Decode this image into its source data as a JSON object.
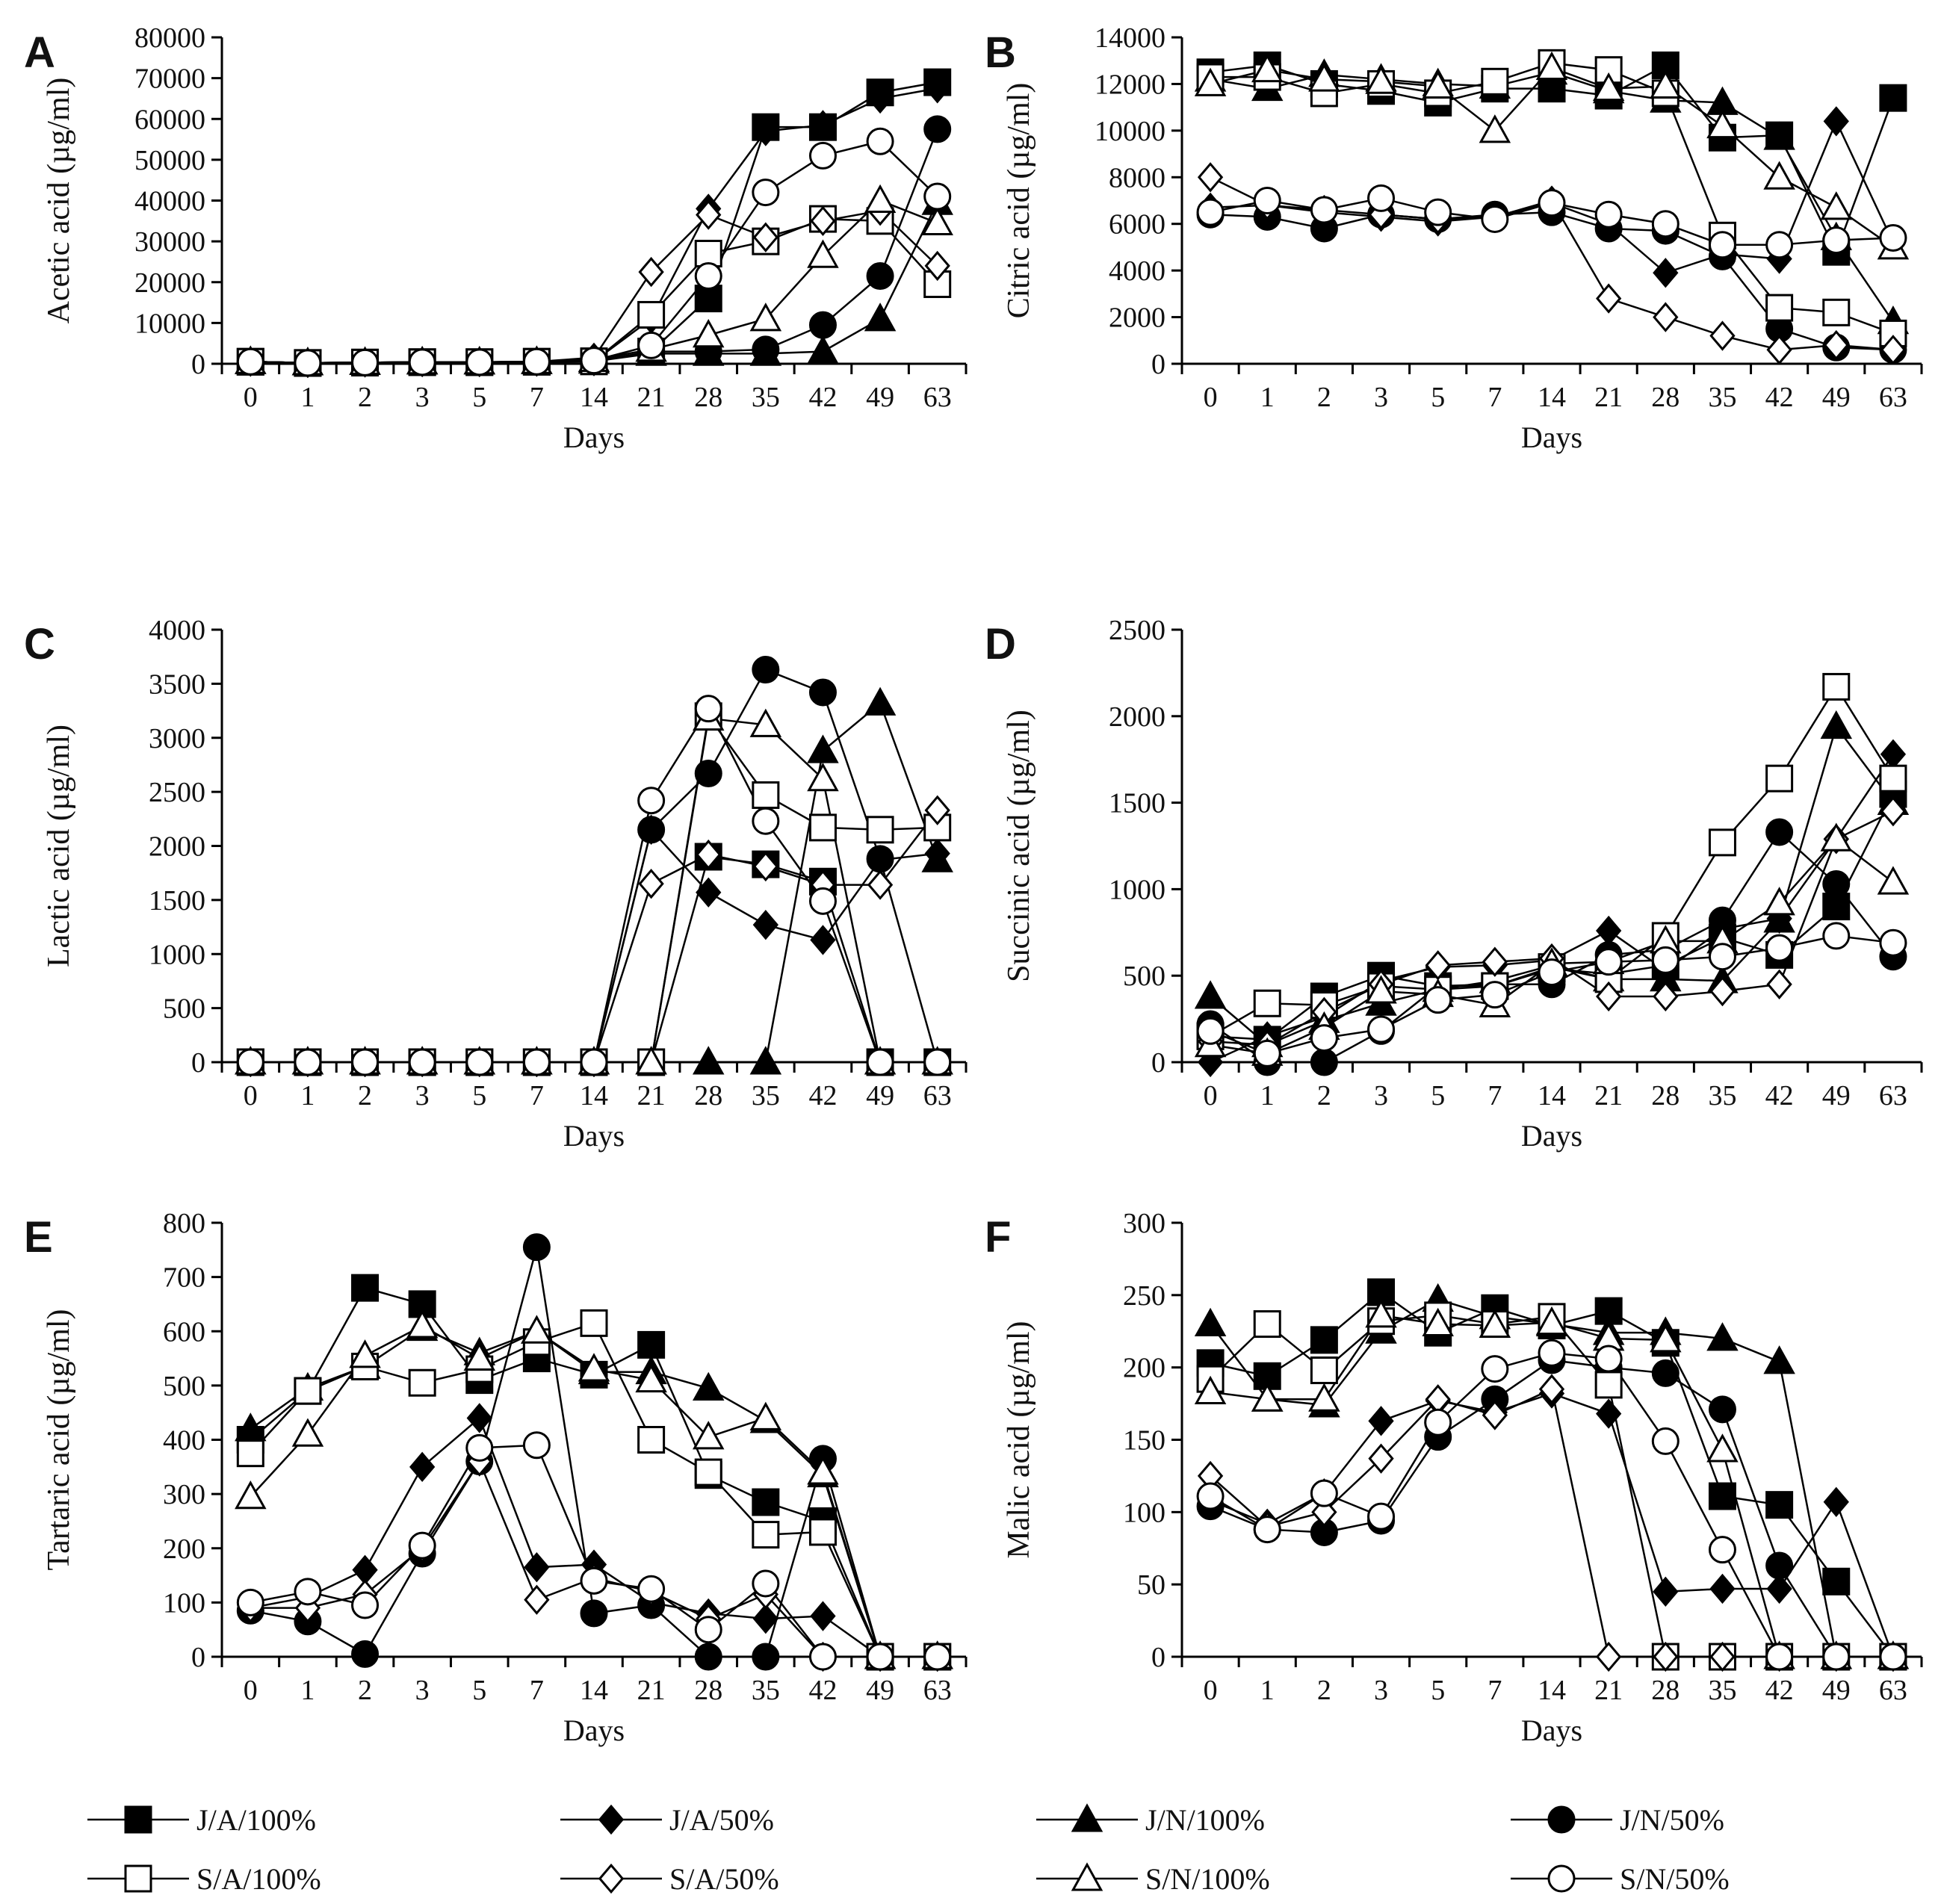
{
  "legend": [
    {
      "label": "J/A/100%",
      "marker": "square",
      "fill": "#000000"
    },
    {
      "label": "J/A/50%",
      "marker": "diamond",
      "fill": "#000000"
    },
    {
      "label": "J/N/100%",
      "marker": "triangle",
      "fill": "#000000"
    },
    {
      "label": "J/N/50%",
      "marker": "circle",
      "fill": "#000000"
    },
    {
      "label": "S/A/100%",
      "marker": "square",
      "fill": "#ffffff"
    },
    {
      "label": "S/A/50%",
      "marker": "diamond",
      "fill": "#ffffff"
    },
    {
      "label": "S/N/100%",
      "marker": "triangle",
      "fill": "#ffffff"
    },
    {
      "label": "S/N/50%",
      "marker": "circle",
      "fill": "#ffffff"
    }
  ],
  "chart_data": [
    {
      "panel": "A",
      "type": "line",
      "ylabel": "Acetic acid (µg/ml)",
      "xlabel": "Days",
      "categories": [
        "0",
        "1",
        "2",
        "3",
        "5",
        "7",
        "14",
        "21",
        "28",
        "35",
        "42",
        "49",
        "63"
      ],
      "ylim": [
        0,
        80000
      ],
      "yticks": [
        0,
        10000,
        20000,
        30000,
        40000,
        50000,
        60000,
        70000,
        80000
      ],
      "grid": false,
      "series": [
        {
          "name": "J/A/100%",
          "values": [
            500,
            200,
            300,
            400,
            400,
            500,
            600,
            3000,
            16000,
            58000,
            58000,
            66500,
            69000
          ]
        },
        {
          "name": "J/A/50%",
          "values": [
            500,
            200,
            300,
            400,
            400,
            500,
            600,
            11000,
            38000,
            57000,
            58500,
            65000,
            67500
          ]
        },
        {
          "name": "J/N/100%",
          "values": [
            500,
            200,
            300,
            400,
            400,
            500,
            600,
            2500,
            2500,
            2500,
            3000,
            11000,
            39500
          ]
        },
        {
          "name": "J/N/50%",
          "values": [
            500,
            200,
            300,
            400,
            400,
            500,
            600,
            3000,
            3000,
            3500,
            9500,
            21500,
            57500
          ]
        },
        {
          "name": "S/A/100%",
          "values": [
            500,
            200,
            300,
            400,
            400,
            500,
            600,
            12000,
            27000,
            30000,
            35500,
            35000,
            19500
          ]
        },
        {
          "name": "S/A/50%",
          "values": [
            500,
            200,
            300,
            400,
            400,
            500,
            1500,
            22500,
            36500,
            31000,
            35000,
            37500,
            24000
          ]
        },
        {
          "name": "S/N/100%",
          "values": [
            500,
            200,
            300,
            400,
            400,
            500,
            1000,
            3500,
            7000,
            11000,
            26500,
            40000,
            34500
          ]
        },
        {
          "name": "S/N/50%",
          "values": [
            500,
            200,
            300,
            400,
            400,
            500,
            800,
            4500,
            21500,
            42000,
            51000,
            54500,
            41000
          ]
        }
      ]
    },
    {
      "panel": "B",
      "type": "line",
      "ylabel": "Citric acid (µg/ml)",
      "xlabel": "Days",
      "categories": [
        "0",
        "1",
        "2",
        "3",
        "5",
        "7",
        "14",
        "21",
        "28",
        "35",
        "42",
        "49",
        "63"
      ],
      "ylim": [
        0,
        14000
      ],
      "yticks": [
        0,
        2000,
        4000,
        6000,
        8000,
        10000,
        12000,
        14000
      ],
      "grid": false,
      "series": [
        {
          "name": "J/A/100%",
          "values": [
            12500,
            12800,
            12000,
            11700,
            11200,
            11800,
            11800,
            11500,
            12800,
            9700,
            9800,
            4800,
            11400
          ]
        },
        {
          "name": "J/A/50%",
          "values": [
            6700,
            6800,
            6500,
            6300,
            6100,
            6300,
            6900,
            6000,
            3900,
            4700,
            4500,
            10400,
            5200
          ]
        },
        {
          "name": "J/N/100%",
          "values": [
            12200,
            11800,
            12400,
            12200,
            12000,
            11900,
            12500,
            11700,
            11300,
            11200,
            9700,
            5400,
            1800
          ]
        },
        {
          "name": "J/N/50%",
          "values": [
            6400,
            6300,
            5800,
            6400,
            6200,
            6400,
            6500,
            5800,
            5700,
            4600,
            1500,
            700,
            600
          ]
        },
        {
          "name": "S/A/100%",
          "values": [
            12300,
            12300,
            11600,
            12000,
            11600,
            12100,
            12900,
            12600,
            11600,
            5500,
            2400,
            2200,
            1300
          ]
        },
        {
          "name": "S/A/50%",
          "values": [
            8000,
            6800,
            6600,
            6400,
            6200,
            6300,
            7000,
            2800,
            2000,
            1200,
            600,
            800,
            600
          ]
        },
        {
          "name": "S/N/100%",
          "values": [
            12000,
            12600,
            12200,
            12100,
            11900,
            10000,
            12700,
            11800,
            11900,
            10200,
            8000,
            6700,
            5000
          ]
        },
        {
          "name": "S/N/50%",
          "values": [
            6500,
            7000,
            6600,
            7100,
            6500,
            6200,
            6900,
            6400,
            6000,
            5100,
            5100,
            5300,
            5400
          ]
        }
      ]
    },
    {
      "panel": "C",
      "type": "line",
      "ylabel": "Lactic acid (µg/ml)",
      "xlabel": "Days",
      "categories": [
        "0",
        "1",
        "2",
        "3",
        "5",
        "7",
        "14",
        "21",
        "28",
        "35",
        "42",
        "49",
        "63"
      ],
      "ylim": [
        0,
        4000
      ],
      "yticks": [
        0,
        500,
        1000,
        1500,
        2000,
        2500,
        3000,
        3500,
        4000
      ],
      "grid": false,
      "series": [
        {
          "name": "J/A/100%",
          "values": [
            0,
            0,
            0,
            0,
            0,
            0,
            0,
            0,
            1900,
            1830,
            1670,
            0,
            0
          ]
        },
        {
          "name": "J/A/50%",
          "values": [
            0,
            0,
            0,
            0,
            0,
            0,
            0,
            2150,
            1570,
            1270,
            1130,
            1870,
            1930
          ]
        },
        {
          "name": "J/N/100%",
          "values": [
            0,
            0,
            0,
            0,
            0,
            0,
            0,
            0,
            0,
            0,
            2880,
            3320,
            1870
          ]
        },
        {
          "name": "J/N/50%",
          "values": [
            0,
            0,
            0,
            0,
            0,
            0,
            0,
            2150,
            2670,
            3630,
            3420,
            1880,
            0
          ]
        },
        {
          "name": "S/A/100%",
          "values": [
            0,
            0,
            0,
            0,
            0,
            0,
            0,
            0,
            3200,
            2470,
            2170,
            2150,
            2170
          ]
        },
        {
          "name": "S/A/50%",
          "values": [
            0,
            0,
            0,
            0,
            0,
            0,
            0,
            1650,
            1920,
            1810,
            1640,
            1640,
            2330
          ]
        },
        {
          "name": "S/N/100%",
          "values": [
            0,
            0,
            0,
            0,
            0,
            0,
            0,
            0,
            3180,
            3120,
            2620,
            0,
            0
          ]
        },
        {
          "name": "S/N/50%",
          "values": [
            0,
            0,
            0,
            0,
            0,
            0,
            0,
            2420,
            3270,
            2230,
            1490,
            0,
            0
          ]
        }
      ]
    },
    {
      "panel": "D",
      "type": "line",
      "ylabel": "Succinic acid (µg/ml)",
      "xlabel": "Days",
      "categories": [
        "0",
        "1",
        "2",
        "3",
        "5",
        "7",
        "14",
        "21",
        "28",
        "35",
        "42",
        "49",
        "63"
      ],
      "ylim": [
        0,
        2500
      ],
      "yticks": [
        0,
        500,
        1000,
        1500,
        2000,
        2500
      ],
      "grid": false,
      "series": [
        {
          "name": "J/A/100%",
          "values": [
            150,
            130,
            380,
            500,
            440,
            440,
            540,
            510,
            560,
            720,
            620,
            900,
            1550
          ]
        },
        {
          "name": "J/A/50%",
          "values": [
            0,
            150,
            260,
            470,
            550,
            560,
            590,
            760,
            530,
            770,
            830,
            1290,
            1780
          ]
        },
        {
          "name": "J/N/100%",
          "values": [
            380,
            100,
            240,
            340,
            420,
            470,
            560,
            480,
            480,
            470,
            820,
            1940,
            1500
          ]
        },
        {
          "name": "J/N/50%",
          "values": [
            220,
            0,
            0,
            180,
            440,
            450,
            450,
            620,
            650,
            820,
            1330,
            1030,
            610
          ]
        },
        {
          "name": "S/A/100%",
          "values": [
            150,
            340,
            330,
            440,
            420,
            440,
            550,
            480,
            730,
            1270,
            1640,
            2170,
            1640
          ]
        },
        {
          "name": "S/A/50%",
          "values": [
            120,
            100,
            290,
            450,
            560,
            580,
            600,
            380,
            380,
            410,
            450,
            1290,
            1450
          ]
        },
        {
          "name": "S/N/100%",
          "values": [
            100,
            50,
            200,
            410,
            390,
            330,
            570,
            580,
            700,
            700,
            920,
            1290,
            1040
          ]
        },
        {
          "name": "S/N/50%",
          "values": [
            180,
            50,
            140,
            190,
            360,
            390,
            520,
            580,
            590,
            610,
            660,
            730,
            690
          ]
        }
      ]
    },
    {
      "panel": "E",
      "type": "line",
      "ylabel": "Tartaric acid (µg/ml)",
      "xlabel": "Days",
      "categories": [
        "0",
        "1",
        "2",
        "3",
        "5",
        "7",
        "14",
        "21",
        "28",
        "35",
        "42",
        "49",
        "63"
      ],
      "ylim": [
        0,
        800
      ],
      "yticks": [
        0,
        100,
        200,
        300,
        400,
        500,
        600,
        700,
        800
      ],
      "grid": false,
      "series": [
        {
          "name": "J/A/100%",
          "values": [
            400,
            490,
            680,
            650,
            510,
            550,
            520,
            575,
            335,
            285,
            250,
            0,
            0
          ]
        },
        {
          "name": "J/A/50%",
          "values": [
            90,
            110,
            160,
            350,
            440,
            165,
            170,
            100,
            80,
            70,
            75,
            0,
            0
          ]
        },
        {
          "name": "J/N/100%",
          "values": [
            420,
            495,
            535,
            605,
            560,
            600,
            525,
            525,
            495,
            435,
            335,
            0,
            0
          ]
        },
        {
          "name": "J/N/50%",
          "values": [
            85,
            65,
            5,
            190,
            360,
            755,
            80,
            95,
            0,
            0,
            365,
            0,
            0
          ]
        },
        {
          "name": "S/A/100%",
          "values": [
            375,
            490,
            535,
            505,
            530,
            580,
            615,
            400,
            340,
            225,
            230,
            0,
            0
          ]
        },
        {
          "name": "S/A/50%",
          "values": [
            90,
            90,
            115,
            200,
            360,
            105,
            145,
            120,
            70,
            115,
            0,
            0,
            0
          ]
        },
        {
          "name": "S/N/100%",
          "values": [
            295,
            410,
            555,
            610,
            550,
            600,
            530,
            510,
            405,
            440,
            340,
            0,
            0
          ]
        },
        {
          "name": "S/N/50%",
          "values": [
            100,
            120,
            95,
            205,
            385,
            390,
            140,
            125,
            50,
            135,
            0,
            0,
            0
          ]
        }
      ]
    },
    {
      "panel": "F",
      "type": "line",
      "ylabel": "Malic acid (µg/ml)",
      "xlabel": "Days",
      "categories": [
        "0",
        "1",
        "2",
        "3",
        "5",
        "7",
        "14",
        "21",
        "28",
        "35",
        "42",
        "49",
        "63"
      ],
      "ylim": [
        0,
        300
      ],
      "yticks": [
        0,
        50,
        100,
        150,
        200,
        250,
        300
      ],
      "grid": false,
      "series": [
        {
          "name": "J/A/100%",
          "values": [
            203,
            194,
            219,
            252,
            224,
            241,
            229,
            239,
            217,
            111,
            105,
            52,
            0
          ]
        },
        {
          "name": "J/A/50%",
          "values": [
            108,
            92,
            113,
            163,
            177,
            169,
            182,
            168,
            45,
            47,
            47,
            107,
            0
          ]
        },
        {
          "name": "J/N/100%",
          "values": [
            230,
            178,
            174,
            225,
            247,
            235,
            230,
            224,
            224,
            220,
            204,
            0,
            0
          ]
        },
        {
          "name": "J/N/50%",
          "values": [
            104,
            88,
            86,
            94,
            152,
            178,
            205,
            200,
            196,
            171,
            63,
            0,
            0
          ]
        },
        {
          "name": "S/A/100%",
          "values": [
            192,
            230,
            198,
            232,
            236,
            230,
            235,
            188,
            0,
            0,
            0,
            0,
            0
          ]
        },
        {
          "name": "S/A/50%",
          "values": [
            125,
            90,
            100,
            137,
            178,
            167,
            185,
            0,
            0,
            0,
            0,
            0,
            0
          ]
        },
        {
          "name": "S/N/100%",
          "values": [
            183,
            178,
            178,
            236,
            230,
            229,
            231,
            220,
            219,
            143,
            0,
            0,
            0
          ]
        },
        {
          "name": "S/N/50%",
          "values": [
            111,
            88,
            113,
            97,
            162,
            199,
            210,
            206,
            149,
            74,
            0,
            0,
            0
          ]
        }
      ]
    }
  ]
}
